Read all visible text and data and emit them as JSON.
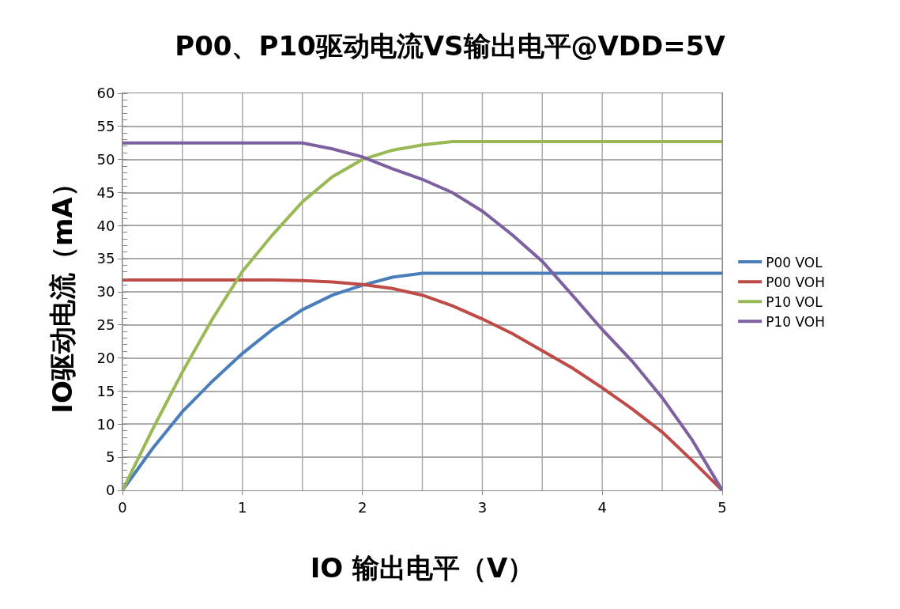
{
  "chart_data": {
    "type": "line",
    "title": "P00、P10驱动电流VS输出电平@VDD=5V",
    "xlabel": "IO 输出电平（V）",
    "ylabel": "IO驱动电流（mA）",
    "x": [
      0,
      0.25,
      0.5,
      0.75,
      1,
      1.25,
      1.5,
      1.75,
      2,
      2.25,
      2.5,
      2.75,
      3,
      3.25,
      3.5,
      3.75,
      4,
      4.25,
      4.5,
      4.75,
      5
    ],
    "series": [
      {
        "name": "P00 VOL",
        "color": "#4a7ebb",
        "values": [
          0,
          6.3,
          11.9,
          16.5,
          20.7,
          24.3,
          27.3,
          29.5,
          31.0,
          32.2,
          32.8,
          32.8,
          32.8,
          32.8,
          32.8,
          32.8,
          32.8,
          32.8,
          32.8,
          32.8,
          32.8
        ]
      },
      {
        "name": "P00 VOH",
        "color": "#be4b48",
        "values": [
          31.8,
          31.8,
          31.8,
          31.8,
          31.8,
          31.8,
          31.7,
          31.5,
          31.1,
          30.5,
          29.5,
          27.9,
          25.9,
          23.7,
          21.1,
          18.5,
          15.5,
          12.3,
          8.8,
          4.5,
          0
        ]
      },
      {
        "name": "P10 VOL",
        "color": "#98b954",
        "values": [
          0,
          9.2,
          17.9,
          25.9,
          33.1,
          38.6,
          43.6,
          47.4,
          50.0,
          51.4,
          52.2,
          52.7,
          52.7,
          52.7,
          52.7,
          52.7,
          52.7,
          52.7,
          52.7,
          52.7,
          52.7
        ]
      },
      {
        "name": "P10 VOH",
        "color": "#7d60a0",
        "values": [
          52.5,
          52.5,
          52.5,
          52.5,
          52.5,
          52.5,
          52.5,
          51.6,
          50.4,
          48.6,
          47.0,
          45.0,
          42.2,
          38.6,
          34.6,
          29.5,
          24.3,
          19.5,
          14.0,
          7.6,
          0
        ]
      }
    ],
    "xlim": [
      0,
      5
    ],
    "xticks": [
      0,
      1,
      2,
      3,
      4,
      5
    ],
    "ylim": [
      0,
      60
    ],
    "yticks": [
      0,
      5,
      10,
      15,
      20,
      25,
      30,
      35,
      40,
      45,
      50,
      55,
      60
    ],
    "grid": true,
    "legend": "right",
    "marker": "none",
    "line_style": "solid"
  }
}
